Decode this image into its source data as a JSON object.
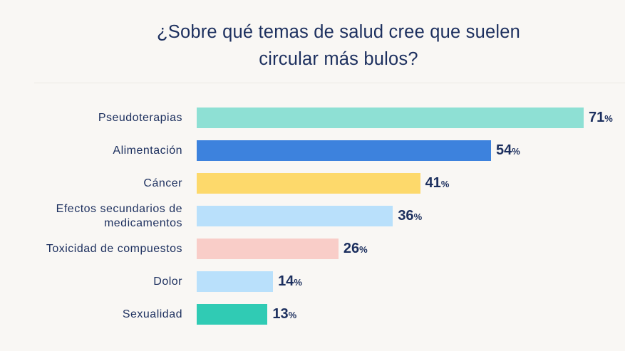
{
  "chart_data": {
    "type": "bar",
    "orientation": "horizontal",
    "title": "¿Sobre qué temas de salud cree que suelen circular más bulos?",
    "xlabel": "",
    "ylabel": "",
    "xlim": [
      0,
      71
    ],
    "grid": false,
    "value_suffix": "%",
    "categories": [
      "Pseudoterapias",
      "Alimentación",
      "Cáncer",
      "Efectos secundarios de medicamentos",
      "Toxicidad de compuestos",
      "Dolor",
      "Sexualidad"
    ],
    "category_lines": [
      [
        "Pseudoterapias"
      ],
      [
        "Alimentación"
      ],
      [
        "Cáncer"
      ],
      [
        "Efectos secundarios de",
        "medicamentos"
      ],
      [
        "Toxicidad de compuestos"
      ],
      [
        "Dolor"
      ],
      [
        "Sexualidad"
      ]
    ],
    "values": [
      71,
      54,
      41,
      36,
      26,
      14,
      13
    ],
    "value_labels": [
      "71",
      "54",
      "41",
      "36",
      "26",
      "14",
      "13"
    ],
    "colors": [
      "#8ee0d4",
      "#3d82dd",
      "#fdd96b",
      "#b9e0fb",
      "#f9cdc8",
      "#b9e0fb",
      "#30cbb4"
    ]
  }
}
